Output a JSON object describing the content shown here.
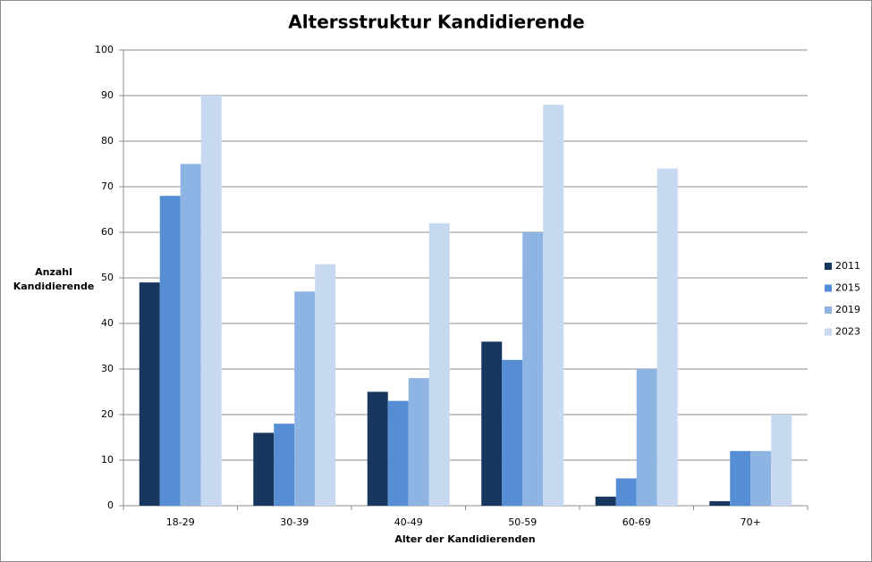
{
  "chart_data": {
    "type": "bar",
    "title": "Altersstruktur Kandidierende",
    "x_label": "Alter der Kandidierenden",
    "y_label": "Anzahl Kandidierende",
    "categories": [
      "18-29",
      "30-39",
      "40-49",
      "50-59",
      "60-69",
      "70+"
    ],
    "series": [
      {
        "name": "2011",
        "color": "#17375e",
        "values": [
          49,
          16,
          25,
          36,
          2,
          1
        ]
      },
      {
        "name": "2015",
        "color": "#558ed5",
        "values": [
          68,
          18,
          23,
          32,
          6,
          12
        ]
      },
      {
        "name": "2019",
        "color": "#8eb4e3",
        "values": [
          75,
          47,
          28,
          60,
          30,
          12
        ]
      },
      {
        "name": "2023",
        "color": "#c6d9f1",
        "values": [
          90,
          53,
          62,
          88,
          74,
          20
        ]
      }
    ],
    "ylim": [
      0,
      100
    ],
    "yticks": [
      0,
      10,
      20,
      30,
      40,
      50,
      60,
      70,
      80,
      90,
      100
    ],
    "grid": true,
    "legend": "right"
  }
}
